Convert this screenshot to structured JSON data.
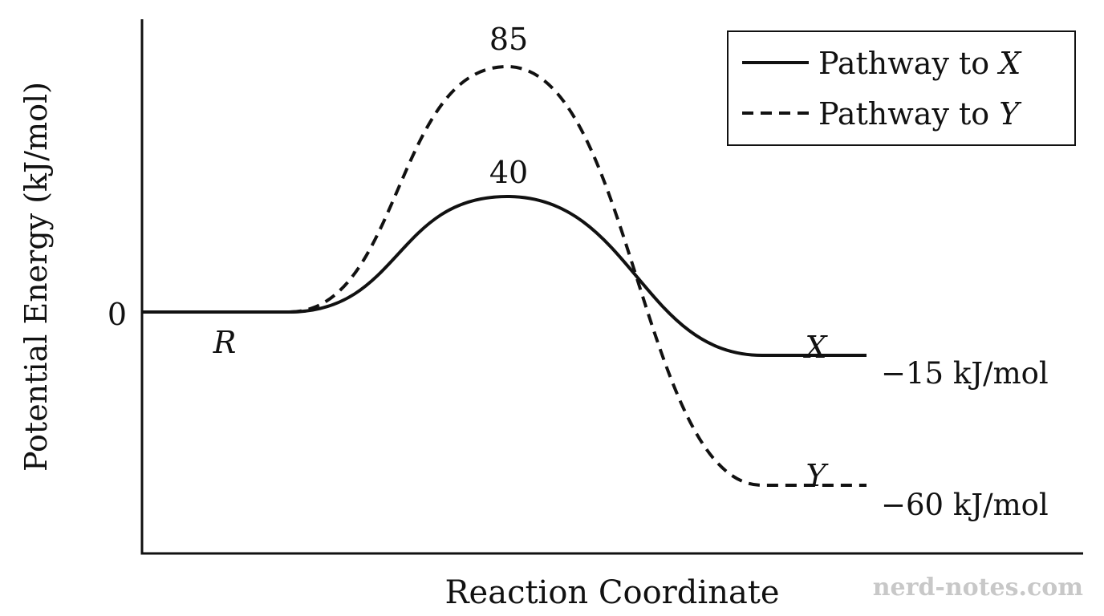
{
  "chart_data": {
    "type": "line",
    "ylabel": "Potential Energy (kJ/mol)",
    "xlabel": "Reaction Coordinate",
    "y_tick_label": "0",
    "x_ticks_shown": false,
    "grid": false,
    "legend_placement": "top-right",
    "series": [
      {
        "name": "Pathway to X",
        "style": "solid",
        "color": "#111111",
        "reactant_energy": 0,
        "peak_energy": 40,
        "product_energy": -15,
        "peak_label": "40",
        "product_label": "X",
        "product_value_label": "−15 kJ/mol"
      },
      {
        "name": "Pathway to Y",
        "style": "dashed",
        "color": "#111111",
        "reactant_energy": 0,
        "peak_energy": 85,
        "product_energy": -60,
        "peak_label": "85",
        "product_label": "Y",
        "product_value_label": "−60 kJ/mol"
      }
    ],
    "reactant_label": "R",
    "legend": {
      "entries": [
        {
          "text": "Pathway to ",
          "symbol": "X",
          "style": "solid"
        },
        {
          "text": "Pathway to ",
          "symbol": "Y",
          "style": "dashed"
        }
      ]
    },
    "watermark": "nerd-notes.com"
  }
}
